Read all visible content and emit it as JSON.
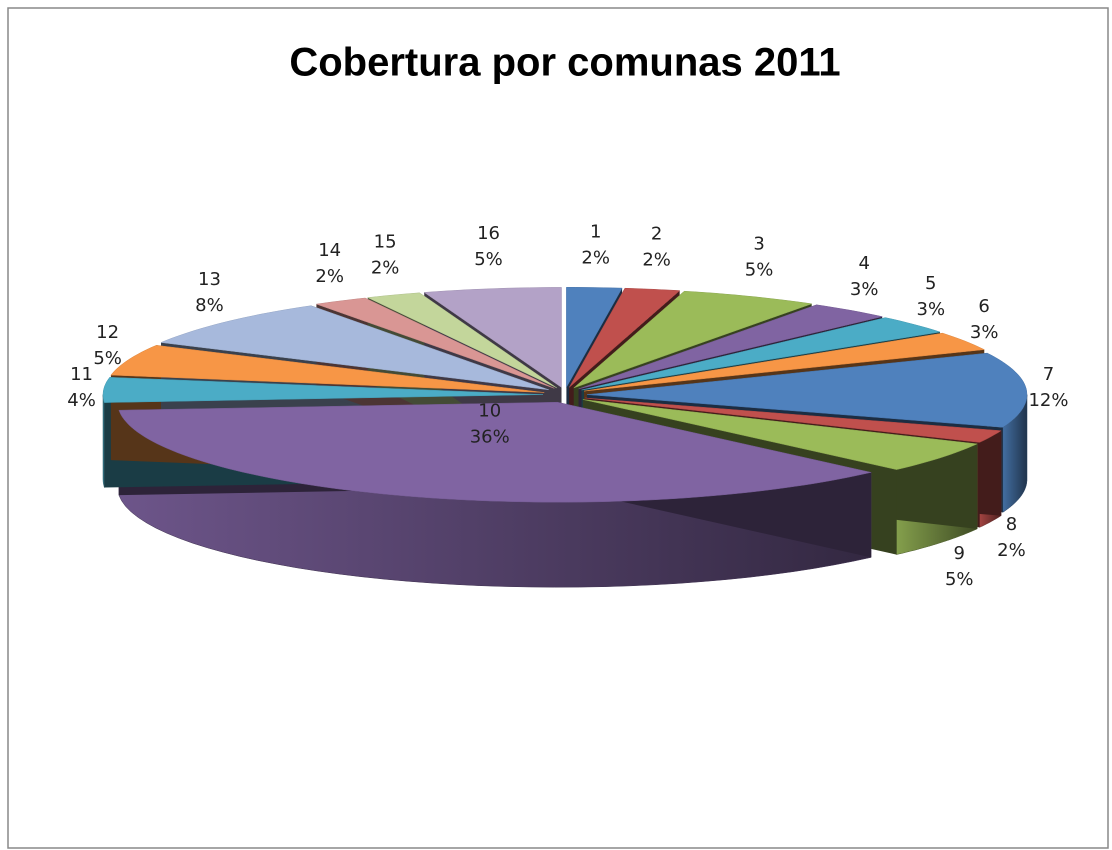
{
  "chart_data": {
    "type": "pie",
    "title": "Cobertura por comunas 2011",
    "categories": [
      "1",
      "2",
      "3",
      "4",
      "5",
      "6",
      "7",
      "8",
      "9",
      "10",
      "11",
      "12",
      "13",
      "14",
      "15",
      "16"
    ],
    "values": [
      2,
      2,
      5,
      3,
      3,
      3,
      12,
      2,
      5,
      36,
      4,
      5,
      8,
      2,
      2,
      5
    ],
    "value_labels": [
      "2%",
      "2%",
      "5%",
      "3%",
      "3%",
      "3%",
      "12%",
      "2%",
      "5%",
      "36%",
      "4%",
      "5%",
      "8%",
      "2%",
      "2%",
      "5%"
    ],
    "colors": [
      "#4f81bd",
      "#c0504d",
      "#9bbb59",
      "#8064a2",
      "#4bacc6",
      "#f79646",
      "#4f81bd",
      "#c0504d",
      "#9bbb59",
      "#8064a2",
      "#4bacc6",
      "#f79646",
      "#a7b9dc",
      "#d99694",
      "#c3d69b",
      "#b3a2c7"
    ]
  }
}
